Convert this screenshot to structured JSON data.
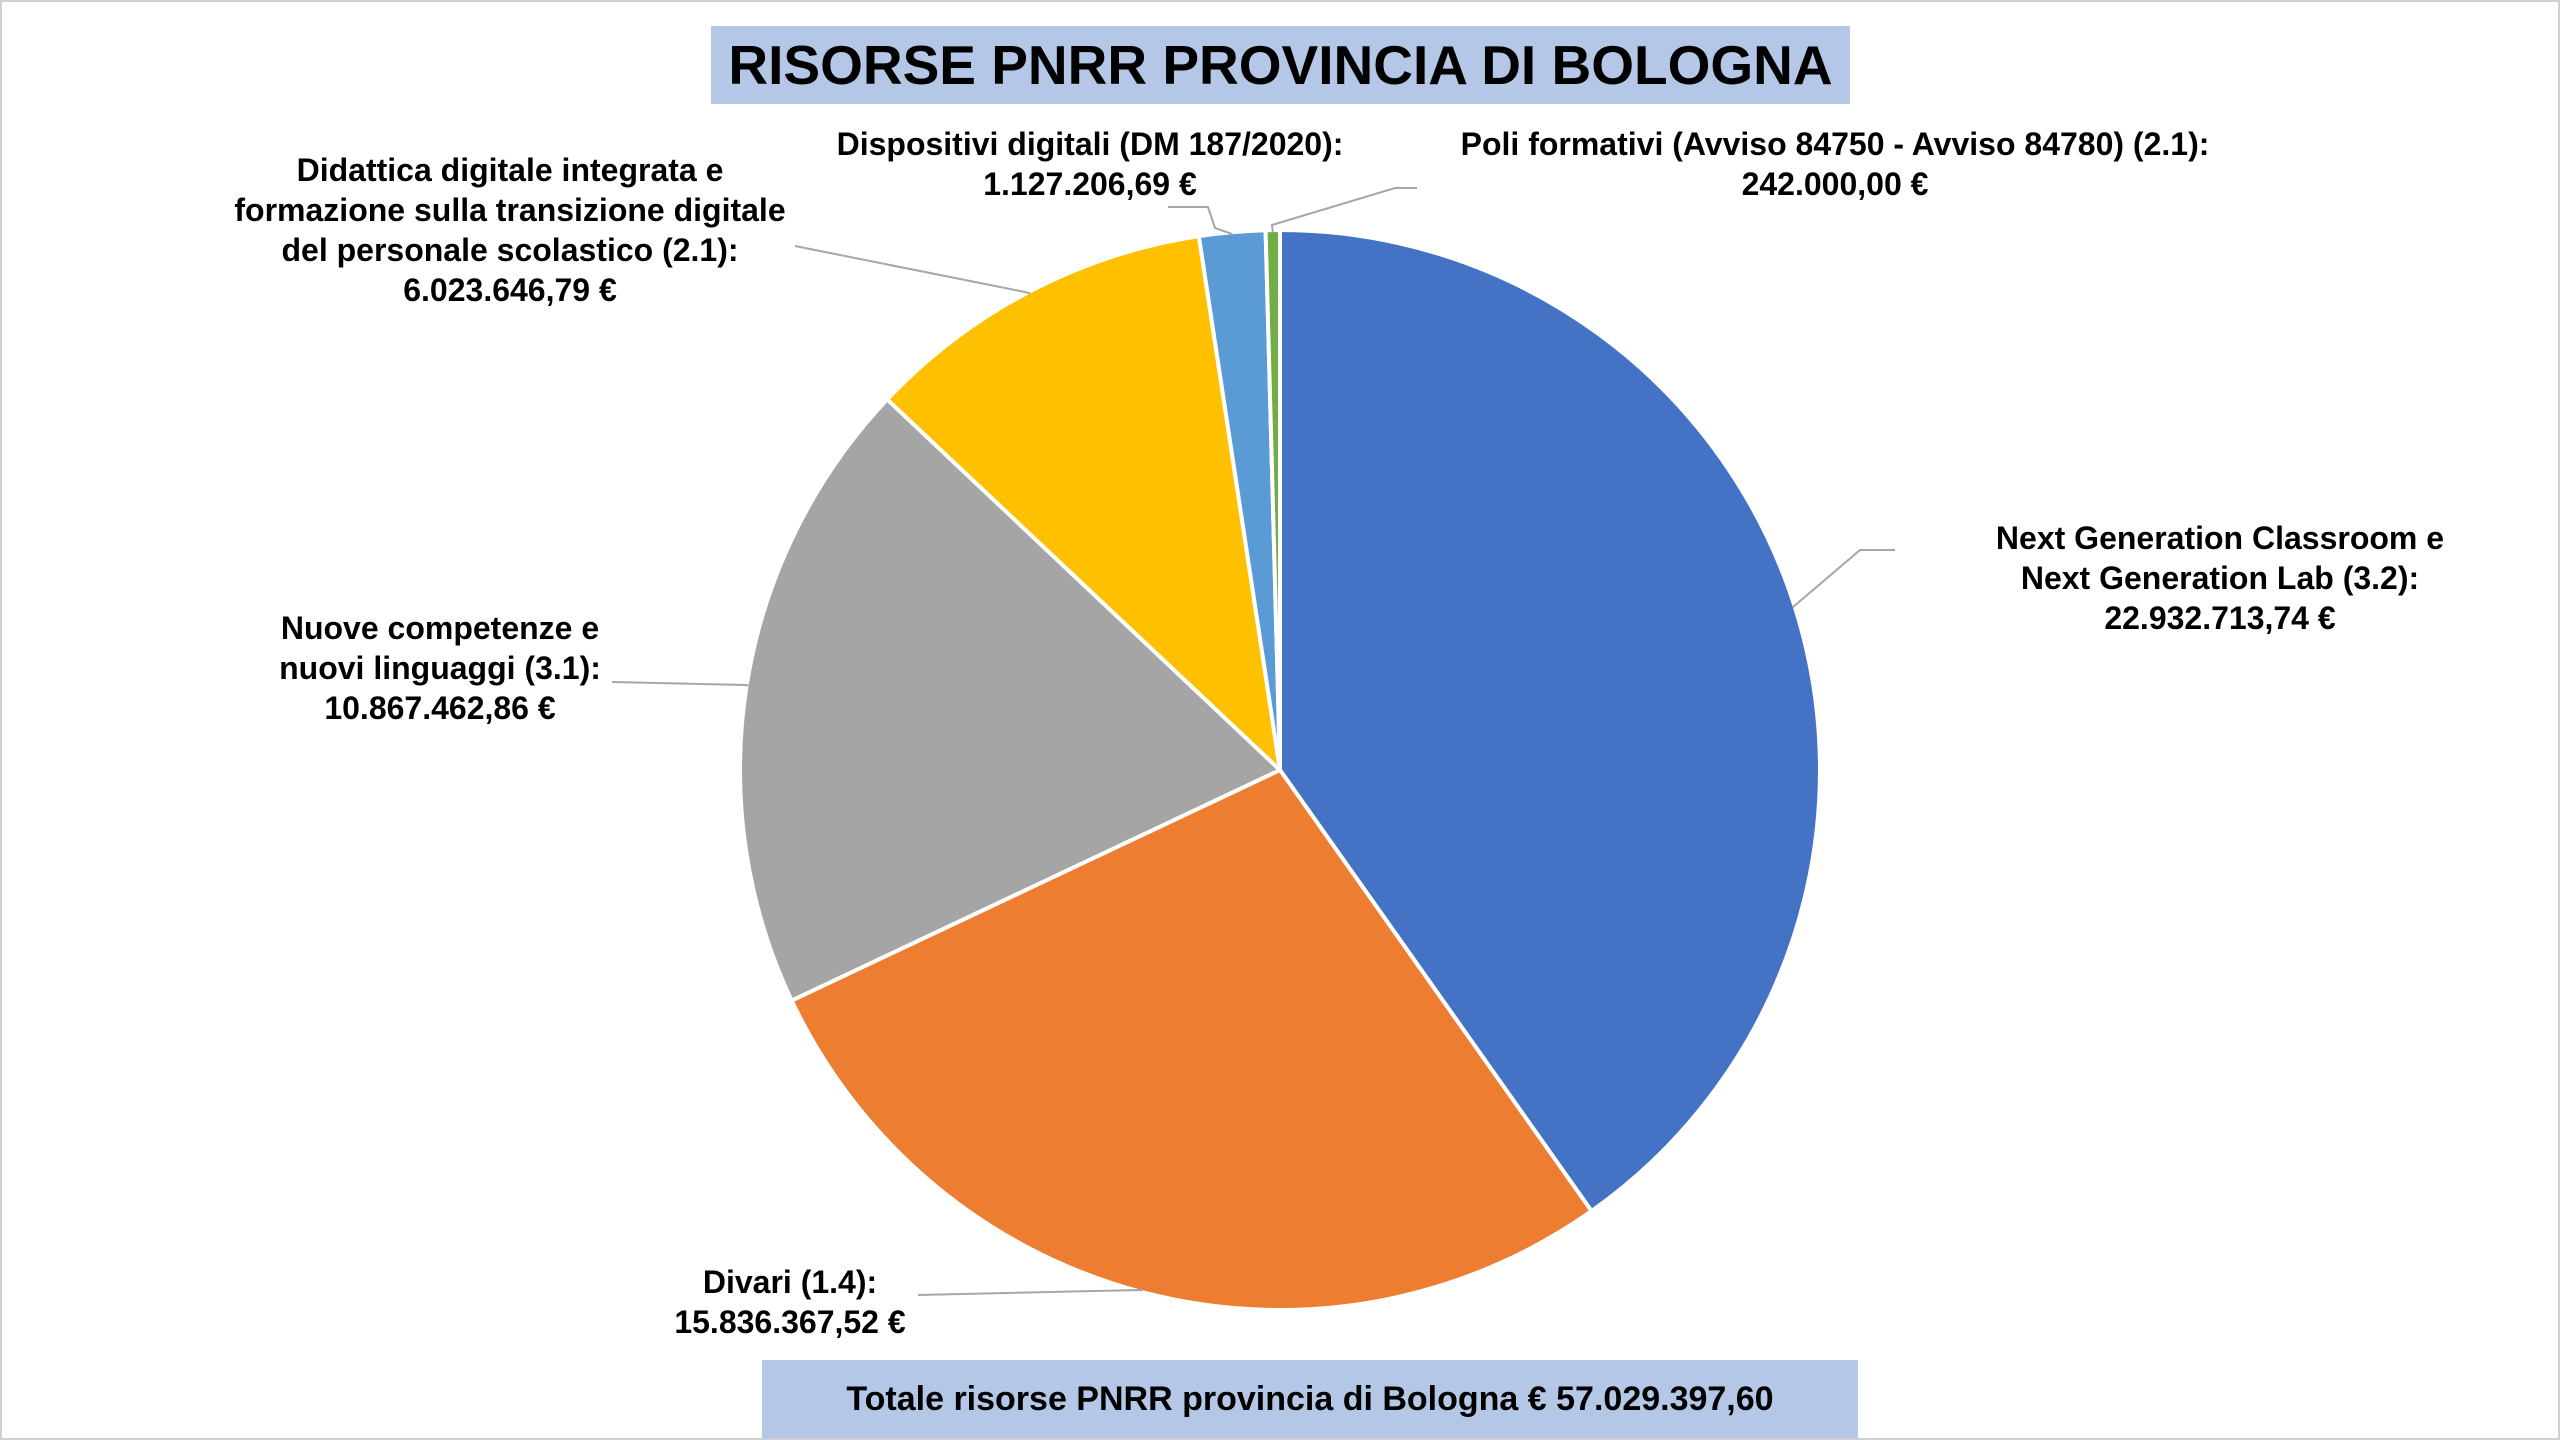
{
  "title": "RISORSE PNRR PROVINCIA DI BOLOGNA",
  "total": "Totale risorse PNRR provincia di Bologna € 57.029.397,60",
  "colors": {
    "title_bg": "#b4c7e7",
    "slice_1": "#4472c4",
    "slice_2": "#ed7d31",
    "slice_3": "#a5a5a5",
    "slice_4": "#ffc000",
    "slice_5": "#5b9bd5",
    "slice_6": "#70ad47"
  },
  "chart_data": {
    "type": "pie",
    "title": "RISORSE PNRR PROVINCIA DI BOLOGNA",
    "slices": [
      {
        "name": "Next Generation Classroom e Next Generation Lab (3.2)",
        "value": 22932713.74,
        "label_lines": [
          "Next Generation Classroom e",
          "Next Generation Lab (3.2):"
        ],
        "value_label": "22.932.713,74 €",
        "color": "#4472c4"
      },
      {
        "name": "Divari (1.4)",
        "value": 15836367.52,
        "label_lines": [
          "Divari (1.4):"
        ],
        "value_label": "15.836.367,52 €",
        "color": "#ed7d31"
      },
      {
        "name": "Nuove competenze e nuovi linguaggi (3.1)",
        "value": 10867462.86,
        "label_lines": [
          "Nuove competenze e",
          "nuovi linguaggi (3.1):"
        ],
        "value_label": "10.867.462,86 €",
        "color": "#a5a5a5"
      },
      {
        "name": "Didattica digitale integrata e formazione sulla transizione digitale del personale scolastico (2.1)",
        "value": 6023646.79,
        "label_lines": [
          "Didattica digitale integrata e",
          "formazione sulla transizione digitale",
          "del personale scolastico (2.1):"
        ],
        "value_label": "6.023.646,79 €",
        "color": "#ffc000"
      },
      {
        "name": "Dispositivi digitali (DM 187/2020)",
        "value": 1127206.69,
        "label_lines": [
          "Dispositivi digitali (DM 187/2020):"
        ],
        "value_label": "1.127.206,69 €",
        "color": "#5b9bd5"
      },
      {
        "name": "Poli formativi (Avviso 84750 - Avviso 84780) (2.1)",
        "value": 242000.0,
        "label_lines": [
          "Poli formativi (Avviso 84750 - Avviso 84780) (2.1):"
        ],
        "value_label": "242.000,00 €",
        "color": "#70ad47"
      }
    ],
    "start_angle": "12 o'clock",
    "direction": "clockwise"
  }
}
